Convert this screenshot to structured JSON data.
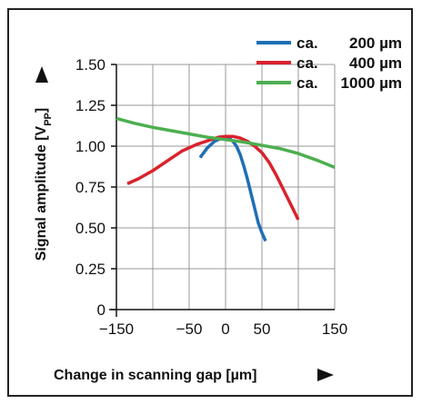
{
  "chart_data": {
    "type": "line",
    "title": "",
    "xlabel": "Change in scanning gap [µm]",
    "ylabel": "Signal amplitude [V",
    "ylabel_sub": "PP",
    "ylabel_end": "]",
    "x_ticks": [
      -150,
      -100,
      -50,
      0,
      50,
      100,
      150
    ],
    "x_tick_labels": [
      "−150",
      "",
      "−50",
      "0",
      "50",
      "",
      "150"
    ],
    "y_ticks": [
      0,
      0.25,
      0.5,
      0.75,
      1.0,
      1.25,
      1.5
    ],
    "y_tick_labels": [
      "0",
      "0.25",
      "0.50",
      "0.75",
      "1.00",
      "1.25",
      "1.50"
    ],
    "xlim": [
      -150,
      150
    ],
    "ylim": [
      0,
      1.5
    ],
    "grid": true,
    "legend_position": "top-right",
    "series": [
      {
        "name": "ca.   200 µm",
        "legend_prefix": "ca.",
        "legend_value": "200 µm",
        "color": "#1f6fb5",
        "x": [
          -35,
          -25,
          -15,
          -5,
          0,
          5,
          10,
          15,
          20,
          25,
          30,
          35,
          40,
          45,
          50,
          55
        ],
        "y": [
          0.93,
          0.99,
          1.03,
          1.05,
          1.06,
          1.05,
          1.03,
          1.0,
          0.95,
          0.88,
          0.8,
          0.71,
          0.62,
          0.53,
          0.47,
          0.42
        ]
      },
      {
        "name": "ca.   400 µm",
        "legend_prefix": "ca.",
        "legend_value": "400 µm",
        "color": "#d9232d",
        "x": [
          -135,
          -120,
          -100,
          -80,
          -60,
          -40,
          -20,
          -10,
          0,
          10,
          20,
          30,
          40,
          50,
          60,
          70,
          80,
          90,
          100
        ],
        "y": [
          0.77,
          0.8,
          0.85,
          0.91,
          0.97,
          1.01,
          1.04,
          1.055,
          1.06,
          1.06,
          1.05,
          1.03,
          1.0,
          0.96,
          0.9,
          0.82,
          0.73,
          0.64,
          0.55
        ]
      },
      {
        "name": "ca. 1000 µm",
        "legend_prefix": "ca.",
        "legend_value": "1000 µm",
        "color": "#4caf50",
        "x": [
          -150,
          -125,
          -100,
          -75,
          -50,
          -25,
          0,
          25,
          50,
          75,
          100,
          125,
          150
        ],
        "y": [
          1.17,
          1.14,
          1.115,
          1.095,
          1.075,
          1.055,
          1.04,
          1.025,
          1.005,
          0.985,
          0.955,
          0.915,
          0.87
        ]
      }
    ]
  }
}
